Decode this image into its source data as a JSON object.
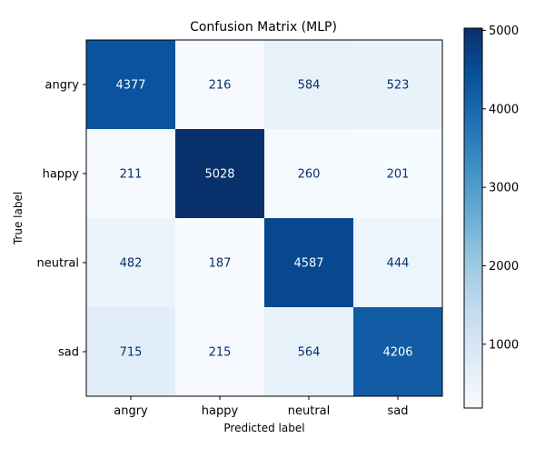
{
  "chart_data": {
    "type": "heatmap",
    "title": "Confusion Matrix (MLP)",
    "xlabel": "Predicted label",
    "ylabel": "True label",
    "x_categories": [
      "angry",
      "happy",
      "neutral",
      "sad"
    ],
    "y_categories": [
      "angry",
      "happy",
      "neutral",
      "sad"
    ],
    "values": [
      [
        4377,
        216,
        584,
        523
      ],
      [
        211,
        5028,
        260,
        201
      ],
      [
        482,
        187,
        4587,
        444
      ],
      [
        715,
        215,
        564,
        4206
      ]
    ],
    "colormap": "Blues",
    "color_range": [
      187,
      5028
    ],
    "colorbar_ticks": [
      "1000",
      "2000",
      "3000",
      "4000",
      "5000"
    ],
    "colorbar_tick_values": [
      1000,
      2000,
      3000,
      4000,
      5000
    ],
    "grid": false
  }
}
